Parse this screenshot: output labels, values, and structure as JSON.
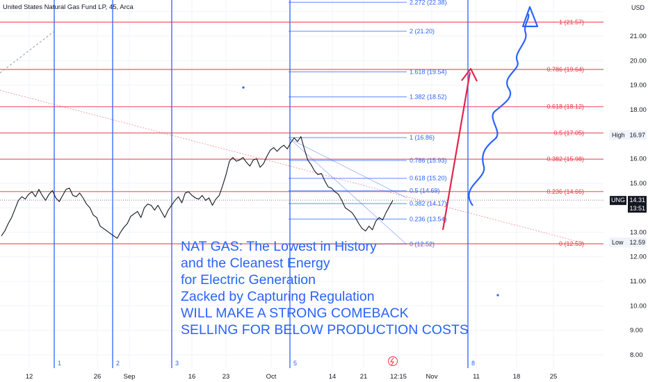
{
  "header": {
    "symbol_title": "United States Natural Gas Fund LP, 45, Arca",
    "currency": "USD"
  },
  "colors": {
    "price_line": "#131722",
    "fib_blue": "#2962ff",
    "fib_red": "#f23645",
    "grid": "#f0f3fa"
  },
  "chart_data": {
    "type": "line",
    "title": "",
    "xlabel": "",
    "ylabel": "",
    "ylim": [
      7.75,
      22.8
    ],
    "y_ticks": [
      "8.00",
      "9.00",
      "10.00",
      "11.00",
      "12.00",
      "13.00",
      "14.00",
      "15.00",
      "16.00",
      "17.00",
      "18.00",
      "19.00",
      "20.00",
      "21.00"
    ],
    "x_ticks": [
      "12",
      "26",
      "Sep",
      "16",
      "23",
      "Oct",
      "14",
      "21",
      "12:15",
      "Nov",
      "11",
      "18",
      "25"
    ],
    "series": [
      {
        "values": [
          12.85,
          13.05,
          13.35,
          13.6,
          13.95,
          14.3,
          14.45,
          14.35,
          14.55,
          14.65,
          14.45,
          14.75,
          14.5,
          14.3,
          14.55,
          14.7,
          14.4,
          14.25,
          14.5,
          14.75,
          14.8,
          14.5,
          14.45,
          14.6,
          14.4,
          14.15,
          14.0,
          13.7,
          13.6,
          13.25,
          13.15,
          13.05,
          12.95,
          12.85,
          12.75,
          13.0,
          13.2,
          13.35,
          13.65,
          13.75,
          13.85,
          13.6,
          14.0,
          14.15,
          14.1,
          13.9,
          14.1,
          13.85,
          13.6,
          13.9,
          14.1,
          14.3,
          14.45,
          14.2,
          14.6,
          14.65,
          14.5,
          14.4,
          14.35,
          14.5,
          14.3,
          14.4,
          14.1,
          14.35,
          14.5,
          14.9,
          15.35,
          15.9,
          16.05,
          15.9,
          15.95,
          16.05,
          15.85,
          15.7,
          15.95,
          16.0,
          15.65,
          15.8,
          16.1,
          16.35,
          16.45,
          16.3,
          16.45,
          16.55,
          16.4,
          16.65,
          16.85,
          16.7,
          16.9,
          16.4,
          15.95,
          15.75,
          15.5,
          15.35,
          15.4,
          15.1,
          14.85,
          14.8,
          14.65,
          14.55,
          14.3,
          14.0,
          13.9,
          13.8,
          13.6,
          13.35,
          13.15,
          13.05,
          13.25,
          13.1,
          13.45,
          13.6,
          13.5,
          13.8,
          14.05,
          14.3
        ]
      }
    ],
    "fib_left_levels": [
      {
        "label": "2.272 (22.38)",
        "value": 22.38
      },
      {
        "label": "2 (21.20)",
        "value": 21.2
      },
      {
        "label": "1.618 (19.54)",
        "value": 19.54
      },
      {
        "label": "1.382 (18.52)",
        "value": 18.52
      },
      {
        "label": "1 (16.86)",
        "value": 16.86
      },
      {
        "label": "0.786 (15.93)",
        "value": 15.93
      },
      {
        "label": "0.618 (15.20)",
        "value": 15.2
      },
      {
        "label": "0.5 (14.69)",
        "value": 14.69
      },
      {
        "label": "0.382 (14.17)",
        "value": 14.17
      },
      {
        "label": "0.236 (13.54)",
        "value": 13.54
      },
      {
        "label": "0 (12.52)",
        "value": 12.52
      }
    ],
    "fib_right_levels": [
      {
        "label": "1 (21.57)",
        "value": 21.57
      },
      {
        "label": "0.786 (19.64)",
        "value": 19.64
      },
      {
        "label": "0.618 (18.12)",
        "value": 18.12
      },
      {
        "label": "0.5 (17.05)",
        "value": 17.05
      },
      {
        "label": "0.382 (15.98)",
        "value": 15.98
      },
      {
        "label": "0.236 (14.66)",
        "value": 14.66
      },
      {
        "label": "0 (12.53)",
        "value": 12.53
      }
    ],
    "cycle_lines": [
      "1",
      "2",
      "3",
      "5",
      "8"
    ],
    "price_badges": {
      "high_label": "High",
      "high_value": "16.97",
      "symbol": "UNG",
      "last_value": "14.31",
      "countdown": "13:51",
      "low_label": "Low",
      "low_value": "12.59"
    },
    "annotation_lines": [
      "NAT GAS: The Lowest in History",
      "and the Cleanest Energy",
      "for Electric Generation",
      "Zacked by Capturing Regulation",
      "WILL MAKE A STRONG COMEBACK",
      "SELLING FOR BELOW PRODUCTION COSTS"
    ]
  }
}
